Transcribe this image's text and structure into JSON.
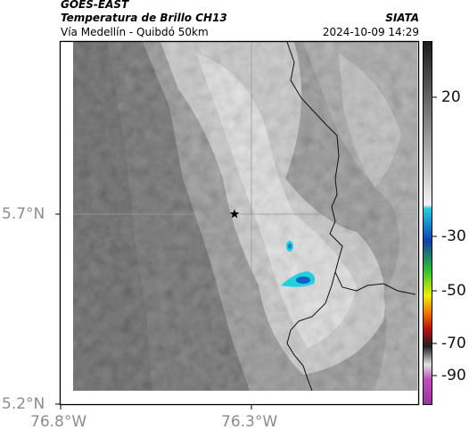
{
  "header": {
    "satellite": "GOES-EAST",
    "product": "Temperatura de Brillo CH13",
    "agency": "SIATA",
    "area": "Vía Medellín - Quibdó 50km",
    "datetime": "2024-10-09 14:29"
  },
  "map": {
    "lat_ticks": [
      "5.7°N",
      "5.2°N"
    ],
    "lon_ticks": [
      "76.8°W",
      "76.3°W"
    ],
    "marker_icon": "star-icon"
  },
  "colorbar": {
    "ticks": [
      "20",
      "-30",
      "-50",
      "-70",
      "-90"
    ],
    "colors": {
      "warm_dark": "#1a1a1a",
      "warm_light": "#f2f2f2",
      "cyan": "#1fd0e0",
      "blue": "#1040b0",
      "green": "#2ec030",
      "yellow": "#f0f000",
      "orange": "#f07000",
      "red": "#c01010",
      "magenta": "#c040c0"
    }
  }
}
